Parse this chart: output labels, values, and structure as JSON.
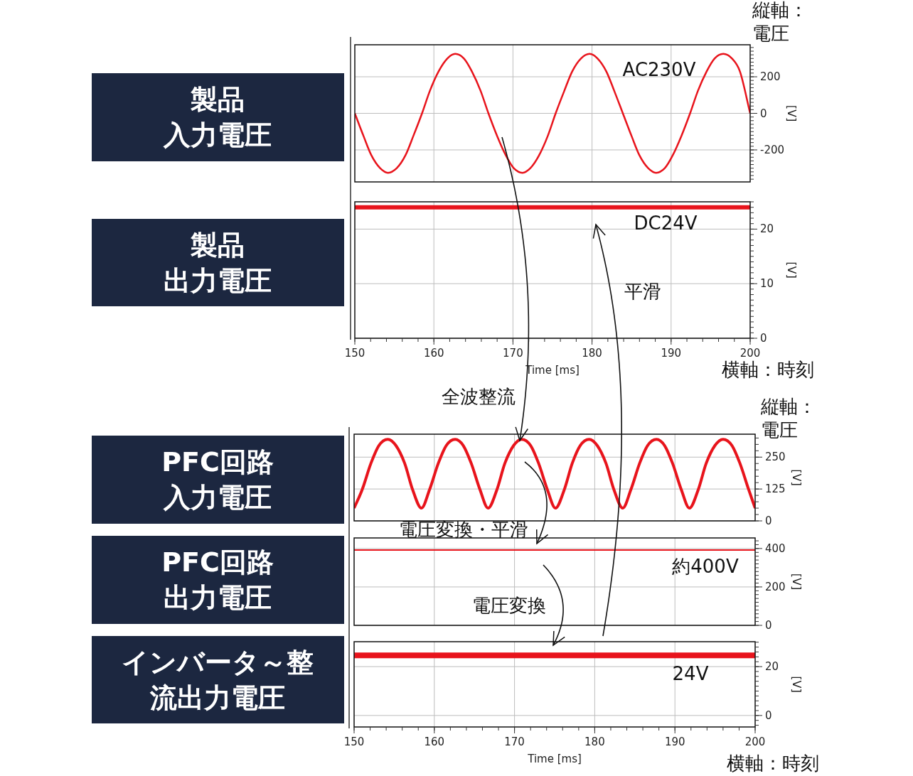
{
  "chart_data": [
    {
      "type": "line",
      "title": "製品入力電圧",
      "ylabel": "[V]",
      "xlim": [
        150,
        200
      ],
      "xticks": [
        150,
        160,
        170,
        180,
        190,
        200
      ],
      "ylim": [
        -375,
        375
      ],
      "yticks": [
        -200,
        0,
        200
      ],
      "tick_labels": "y",
      "grid": true,
      "annotations": [
        "縦軸：電圧",
        "AC230V"
      ],
      "series": [
        {
          "color": "#e8141c",
          "x": [
            150.0,
            151.1,
            152.1,
            153.2,
            154.2,
            155.3,
            156.4,
            157.4,
            158.5,
            159.5,
            160.6,
            161.7,
            162.7,
            163.8,
            164.8,
            165.9,
            166.9,
            168.0,
            169.1,
            170.1,
            171.2,
            172.2,
            173.3,
            174.4,
            175.4,
            176.5,
            177.5,
            178.6,
            179.7,
            180.7,
            181.8,
            182.8,
            183.9,
            185.0,
            186.0,
            187.1,
            188.1,
            189.2,
            190.2,
            191.3,
            192.4,
            193.4,
            194.5,
            195.5,
            196.6,
            197.7,
            198.7,
            200.0
          ],
          "values": [
            0,
            -124,
            -230,
            -300,
            -325,
            -300,
            -230,
            -124,
            0,
            124,
            230,
            300,
            325,
            300,
            230,
            124,
            0,
            -124,
            -230,
            -300,
            -325,
            -300,
            -230,
            -124,
            0,
            124,
            230,
            300,
            325,
            300,
            230,
            124,
            0,
            -124,
            -230,
            -300,
            -325,
            -300,
            -230,
            -124,
            0,
            124,
            230,
            300,
            325,
            300,
            230,
            0
          ]
        }
      ]
    },
    {
      "type": "line",
      "title": "製品出力電圧",
      "ylabel": "[V]",
      "xlabel": "Time [ms]",
      "xlim": [
        150,
        200
      ],
      "xticks": [
        150,
        160,
        170,
        180,
        190,
        200
      ],
      "ylim": [
        0,
        25
      ],
      "yticks": [
        0,
        10,
        20
      ],
      "grid": true,
      "annotations": [
        "DC24V",
        "平滑",
        "横軸：時刻",
        "全波整流"
      ],
      "series": [
        {
          "color": "#e8141c",
          "x": [
            150,
            200
          ],
          "values": [
            24.0,
            24.0
          ]
        }
      ]
    },
    {
      "type": "line",
      "title": "PFC回路入力電圧",
      "ylabel": "[V]",
      "xlim": [
        150,
        200
      ],
      "xticks": [
        150,
        160,
        170,
        180,
        190,
        200
      ],
      "ylim": [
        0,
        340
      ],
      "yticks": [
        0,
        125,
        250
      ],
      "tick_labels": "y",
      "grid": true,
      "annotations": [
        "縦軸：電圧"
      ],
      "series": [
        {
          "color": "#e8141c",
          "x": [
            150.0,
            151.0,
            152.1,
            153.1,
            154.2,
            155.2,
            156.3,
            157.3,
            158.4,
            159.4,
            160.5,
            161.5,
            162.6,
            163.6,
            164.6,
            165.7,
            166.7,
            167.8,
            168.8,
            169.9,
            170.9,
            172.0,
            173.0,
            174.1,
            175.1,
            176.2,
            177.2,
            178.2,
            179.3,
            180.3,
            181.4,
            182.4,
            183.5,
            184.5,
            185.6,
            186.6,
            187.7,
            188.7,
            189.7,
            190.8,
            191.8,
            192.9,
            193.9,
            195.0,
            196.0,
            197.1,
            198.1,
            199.2,
            200.0
          ],
          "values": [
            50,
            122,
            226,
            296,
            320,
            296,
            226,
            122,
            50,
            122,
            226,
            296,
            320,
            296,
            226,
            122,
            50,
            122,
            226,
            296,
            320,
            296,
            226,
            122,
            50,
            122,
            226,
            296,
            320,
            296,
            226,
            122,
            50,
            122,
            226,
            296,
            320,
            296,
            226,
            122,
            50,
            122,
            226,
            296,
            320,
            296,
            226,
            122,
            50
          ]
        }
      ]
    },
    {
      "type": "line",
      "title": "PFC回路出力電圧",
      "ylabel": "[V]",
      "xlim": [
        150,
        200
      ],
      "xticks": [
        150,
        160,
        170,
        180,
        190,
        200
      ],
      "ylim": [
        0,
        455
      ],
      "yticks": [
        0,
        200,
        400
      ],
      "tick_labels": "y",
      "grid": true,
      "annotations": [
        "電圧変換・平滑",
        "約400V",
        "電圧変換"
      ],
      "series": [
        {
          "color": "#e8141c",
          "x": [
            150,
            200
          ],
          "values": [
            392,
            392
          ]
        }
      ]
    },
    {
      "type": "line",
      "title": "インバータ～整流出力電圧",
      "ylabel": "[V]",
      "xlabel": "Time [ms]",
      "xlim": [
        150,
        200
      ],
      "xticks": [
        150,
        160,
        170,
        180,
        190,
        200
      ],
      "ylim": [
        -4.7,
        30.2
      ],
      "yticks": [
        0,
        20
      ],
      "grid": true,
      "annotations": [
        "24V",
        "横軸：時刻"
      ],
      "series": [
        {
          "color": "#e8141c",
          "x": [
            150,
            200
          ],
          "values": [
            24.6,
            24.6
          ]
        }
      ]
    }
  ]
}
